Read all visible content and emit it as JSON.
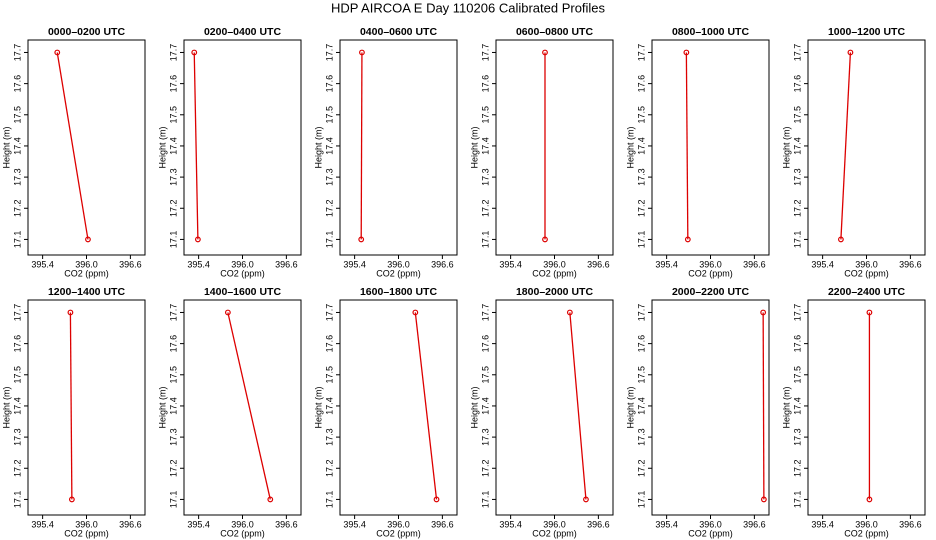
{
  "title": "HDP AIRCOA E  Day 110206  Calibrated Profiles",
  "chart_data": [
    {
      "type": "line",
      "title": "0000–0200 UTC",
      "xlabel": "CO2 (ppm)",
      "ylabel": "Height (m)",
      "x": [
        395.6,
        396.02
      ],
      "values": [
        17.7,
        17.1
      ],
      "color": "#dd0000",
      "xlim": [
        395.2,
        396.8
      ],
      "ylim": [
        17.05,
        17.74
      ],
      "xticks": [
        395.4,
        {
          "value": 396,
          "label": "396.0"
        },
        396.6
      ],
      "yticks": [
        17.1,
        17.2,
        17.3,
        17.4,
        17.5,
        17.6,
        17.7
      ]
    },
    {
      "type": "line",
      "title": "0200–0400 UTC",
      "xlabel": "CO2 (ppm)",
      "ylabel": "Height (m)",
      "x": [
        395.34,
        395.39
      ],
      "values": [
        17.7,
        17.1
      ],
      "color": "#dd0000",
      "xlim": [
        395.2,
        396.8
      ],
      "ylim": [
        17.05,
        17.74
      ],
      "xticks": [
        395.4,
        {
          "value": 396,
          "label": "396.0"
        },
        396.6
      ],
      "yticks": [
        17.1,
        17.2,
        17.3,
        17.4,
        17.5,
        17.6,
        17.7
      ]
    },
    {
      "type": "line",
      "title": "0400–0600 UTC",
      "xlabel": "CO2 (ppm)",
      "ylabel": "Height (m)",
      "x": [
        395.5,
        395.49
      ],
      "values": [
        17.7,
        17.1
      ],
      "color": "#dd0000",
      "xlim": [
        395.2,
        396.8
      ],
      "ylim": [
        17.05,
        17.74
      ],
      "xticks": [
        395.4,
        {
          "value": 396,
          "label": "396.0"
        },
        396.6
      ],
      "yticks": [
        17.1,
        17.2,
        17.3,
        17.4,
        17.5,
        17.6,
        17.7
      ]
    },
    {
      "type": "line",
      "title": "0600–0800 UTC",
      "xlabel": "CO2 (ppm)",
      "ylabel": "Height (m)",
      "x": [
        395.87,
        395.87
      ],
      "values": [
        17.7,
        17.1
      ],
      "color": "#dd0000",
      "xlim": [
        395.2,
        396.8
      ],
      "ylim": [
        17.05,
        17.74
      ],
      "xticks": [
        395.4,
        {
          "value": 396,
          "label": "396.0"
        },
        396.6
      ],
      "yticks": [
        17.1,
        17.2,
        17.3,
        17.4,
        17.5,
        17.6,
        17.7
      ]
    },
    {
      "type": "line",
      "title": "0800–1000 UTC",
      "xlabel": "CO2 (ppm)",
      "ylabel": "Height (m)",
      "x": [
        395.67,
        395.69
      ],
      "values": [
        17.7,
        17.1
      ],
      "color": "#dd0000",
      "xlim": [
        395.2,
        396.8
      ],
      "ylim": [
        17.05,
        17.74
      ],
      "xticks": [
        395.4,
        {
          "value": 396,
          "label": "396.0"
        },
        396.6
      ],
      "yticks": [
        17.1,
        17.2,
        17.3,
        17.4,
        17.5,
        17.6,
        17.7
      ]
    },
    {
      "type": "line",
      "title": "1000–1200 UTC",
      "xlabel": "CO2 (ppm)",
      "ylabel": "Height (m)",
      "x": [
        395.78,
        395.65
      ],
      "values": [
        17.7,
        17.1
      ],
      "color": "#dd0000",
      "xlim": [
        395.2,
        396.8
      ],
      "ylim": [
        17.05,
        17.74
      ],
      "xticks": [
        395.4,
        {
          "value": 396,
          "label": "396.0"
        },
        396.6
      ],
      "yticks": [
        17.1,
        17.2,
        17.3,
        17.4,
        17.5,
        17.6,
        17.7
      ]
    },
    {
      "type": "line",
      "title": "1200–1400 UTC",
      "xlabel": "CO2 (ppm)",
      "ylabel": "Height (m)",
      "x": [
        395.78,
        395.8
      ],
      "values": [
        17.7,
        17.1
      ],
      "color": "#dd0000",
      "xlim": [
        395.2,
        396.8
      ],
      "ylim": [
        17.05,
        17.74
      ],
      "xticks": [
        395.4,
        {
          "value": 396,
          "label": "396.0"
        },
        396.6
      ],
      "yticks": [
        17.1,
        17.2,
        17.3,
        17.4,
        17.5,
        17.6,
        17.7
      ]
    },
    {
      "type": "line",
      "title": "1400–1600 UTC",
      "xlabel": "CO2 (ppm)",
      "ylabel": "Height (m)",
      "x": [
        395.8,
        396.38
      ],
      "values": [
        17.7,
        17.1
      ],
      "color": "#dd0000",
      "xlim": [
        395.2,
        396.8
      ],
      "ylim": [
        17.05,
        17.74
      ],
      "xticks": [
        395.4,
        {
          "value": 396,
          "label": "396.0"
        },
        396.6
      ],
      "yticks": [
        17.1,
        17.2,
        17.3,
        17.4,
        17.5,
        17.6,
        17.7
      ]
    },
    {
      "type": "line",
      "title": "1600–1800 UTC",
      "xlabel": "CO2 (ppm)",
      "ylabel": "Height (m)",
      "x": [
        396.23,
        396.52
      ],
      "values": [
        17.7,
        17.1
      ],
      "color": "#dd0000",
      "xlim": [
        395.2,
        396.8
      ],
      "ylim": [
        17.05,
        17.74
      ],
      "xticks": [
        395.4,
        {
          "value": 396,
          "label": "396.0"
        },
        396.6
      ],
      "yticks": [
        17.1,
        17.2,
        17.3,
        17.4,
        17.5,
        17.6,
        17.7
      ]
    },
    {
      "type": "line",
      "title": "1800–2000 UTC",
      "xlabel": "CO2 (ppm)",
      "ylabel": "Height (m)",
      "x": [
        396.21,
        396.43
      ],
      "values": [
        17.7,
        17.1
      ],
      "color": "#dd0000",
      "xlim": [
        395.2,
        396.8
      ],
      "ylim": [
        17.05,
        17.74
      ],
      "xticks": [
        395.4,
        {
          "value": 396,
          "label": "396.0"
        },
        396.6
      ],
      "yticks": [
        17.1,
        17.2,
        17.3,
        17.4,
        17.5,
        17.6,
        17.7
      ]
    },
    {
      "type": "line",
      "title": "2000–2200 UTC",
      "xlabel": "CO2 (ppm)",
      "ylabel": "Height (m)",
      "x": [
        396.72,
        396.73
      ],
      "values": [
        17.7,
        17.1
      ],
      "color": "#dd0000",
      "xlim": [
        395.2,
        396.8
      ],
      "ylim": [
        17.05,
        17.74
      ],
      "xticks": [
        395.4,
        {
          "value": 396,
          "label": "396.0"
        },
        396.6
      ],
      "yticks": [
        17.1,
        17.2,
        17.3,
        17.4,
        17.5,
        17.6,
        17.7
      ]
    },
    {
      "type": "line",
      "title": "2200–2400 UTC",
      "xlabel": "CO2 (ppm)",
      "ylabel": "Height (m)",
      "x": [
        396.04,
        396.04
      ],
      "values": [
        17.7,
        17.1
      ],
      "color": "#dd0000",
      "xlim": [
        395.2,
        396.8
      ],
      "ylim": [
        17.05,
        17.74
      ],
      "xticks": [
        395.4,
        {
          "value": 396,
          "label": "396.0"
        },
        396.6
      ],
      "yticks": [
        17.1,
        17.2,
        17.3,
        17.4,
        17.5,
        17.6,
        17.7
      ]
    }
  ]
}
